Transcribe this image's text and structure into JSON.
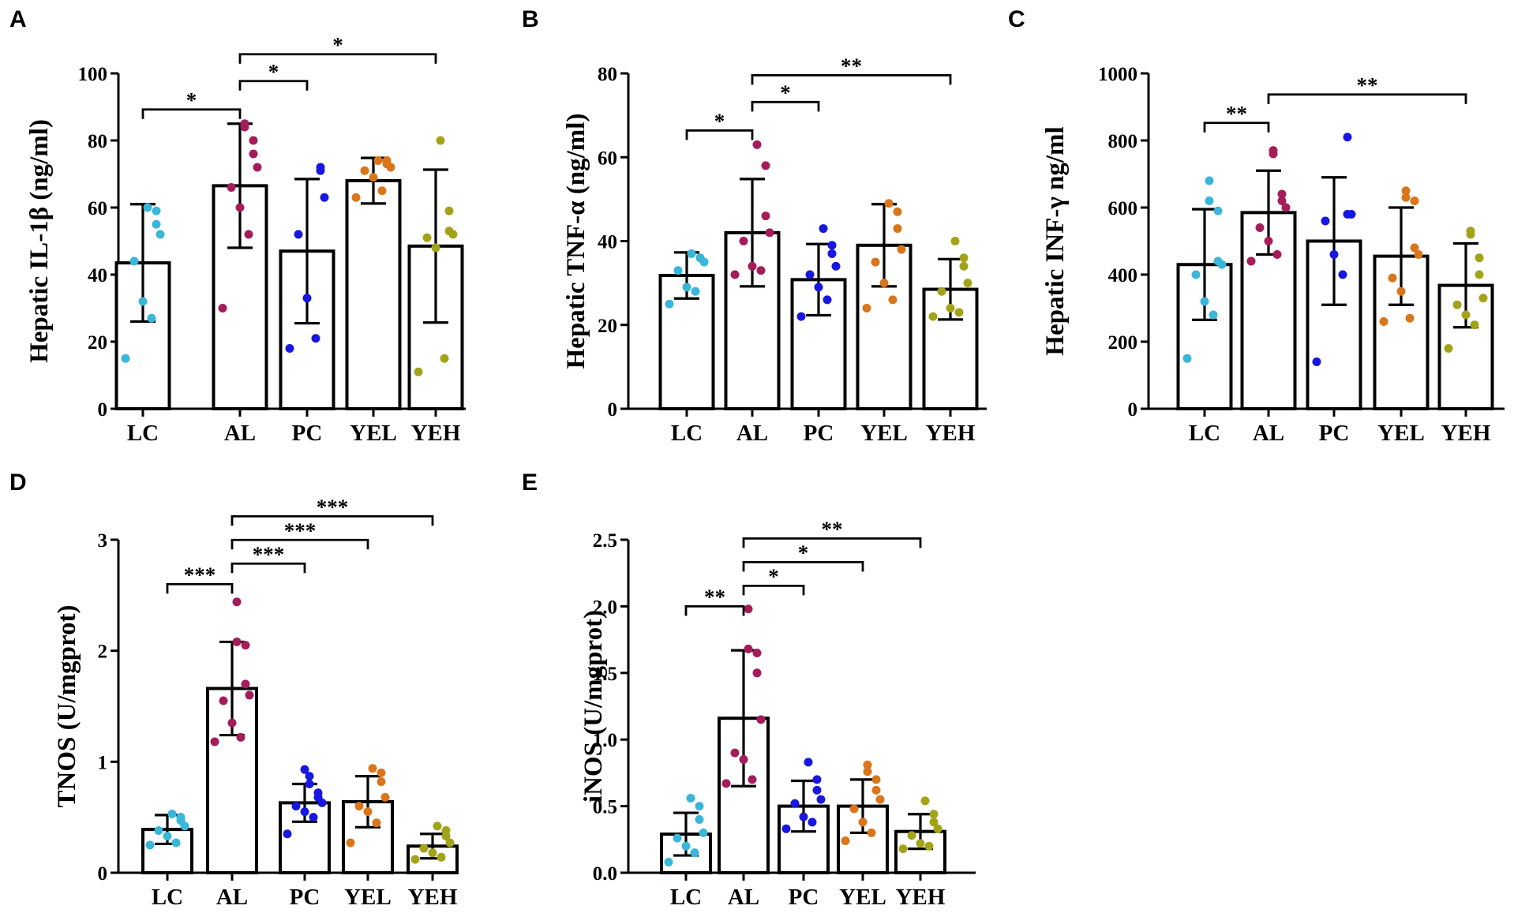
{
  "colors": {
    "LC": "#3ab6d8",
    "AL": "#a51c5a",
    "PC": "#1717e0",
    "YEL": "#d9761b",
    "YEH": "#a3a31a"
  },
  "chart_data": [
    {
      "type": "bar",
      "panel": "A",
      "ylabel": "Hepatic IL-1β (ng/ml)",
      "ylim": [
        0,
        100
      ],
      "ticks": [
        0,
        20,
        40,
        60,
        80,
        100
      ],
      "categories": [
        "LC",
        "AL",
        "PC",
        "YEL",
        "YEH"
      ],
      "means": [
        43.5,
        66.5,
        47,
        68,
        48.5
      ],
      "errors": [
        17.5,
        18.5,
        21.5,
        6.8,
        22.8
      ],
      "points": [
        [
          15,
          27,
          32,
          44,
          52,
          55,
          59,
          60
        ],
        [
          30,
          52,
          60,
          66,
          72,
          76,
          80,
          84,
          85
        ],
        [
          18,
          21,
          33,
          52,
          63,
          71,
          72
        ],
        [
          63,
          65,
          69,
          71,
          72,
          73,
          74,
          74
        ],
        [
          11,
          15,
          48,
          51,
          52,
          53,
          59,
          80
        ]
      ],
      "significance": [
        {
          "from": "LC",
          "to": "AL",
          "label": "*"
        },
        {
          "from": "AL",
          "to": "PC",
          "label": "*"
        },
        {
          "from": "AL",
          "to": "YEH",
          "label": "*"
        }
      ]
    },
    {
      "type": "bar",
      "panel": "B",
      "ylabel": "Hepatic TNF-α (ng/ml)",
      "ylim": [
        0,
        80
      ],
      "ticks": [
        0,
        20,
        40,
        60,
        80
      ],
      "categories": [
        "LC",
        "AL",
        "PC",
        "YEL",
        "YEH"
      ],
      "means": [
        31.8,
        42,
        30.8,
        39,
        28.5
      ],
      "errors": [
        5.5,
        12.8,
        8.5,
        9.8,
        7.2
      ],
      "points": [
        [
          25,
          28,
          29,
          33,
          35,
          36,
          36,
          37
        ],
        [
          32,
          33,
          34,
          40,
          42,
          46,
          58,
          63
        ],
        [
          22,
          26,
          29,
          32,
          34,
          37,
          39,
          43
        ],
        [
          24,
          26,
          30,
          35,
          38,
          43,
          47,
          49
        ],
        [
          22,
          23,
          24,
          28,
          30,
          34,
          36,
          40
        ]
      ],
      "significance": [
        {
          "from": "LC",
          "to": "AL",
          "label": "*"
        },
        {
          "from": "AL",
          "to": "PC",
          "label": "*"
        },
        {
          "from": "AL",
          "to": "YEH",
          "label": "**"
        }
      ]
    },
    {
      "type": "bar",
      "panel": "C",
      "ylabel": "Hepatic INF-γ ng/ml",
      "ylim": [
        0,
        1000
      ],
      "ticks": [
        0,
        200,
        400,
        600,
        800,
        1000
      ],
      "categories": [
        "LC",
        "AL",
        "PC",
        "YEL",
        "YEH"
      ],
      "means": [
        430,
        585,
        500,
        455,
        368
      ],
      "errors": [
        165,
        125,
        190,
        145,
        125
      ],
      "points": [
        [
          150,
          280,
          320,
          400,
          430,
          440,
          590,
          620,
          680
        ],
        [
          440,
          460,
          500,
          540,
          600,
          620,
          640,
          760,
          770
        ],
        [
          140,
          400,
          460,
          560,
          580,
          580,
          810
        ],
        [
          260,
          270,
          350,
          390,
          460,
          480,
          620,
          630,
          650
        ],
        [
          180,
          250,
          280,
          310,
          330,
          400,
          450,
          520,
          530
        ]
      ],
      "significance": [
        {
          "from": "LC",
          "to": "AL",
          "label": "**"
        },
        {
          "from": "AL",
          "to": "YEH",
          "label": "**"
        }
      ]
    },
    {
      "type": "bar",
      "panel": "D",
      "ylabel": "TNOS (U/mgprot)",
      "ylim": [
        0,
        3
      ],
      "ticks": [
        0,
        1,
        2,
        3
      ],
      "categories": [
        "LC",
        "AL",
        "PC",
        "YEL",
        "YEH"
      ],
      "means": [
        0.39,
        1.66,
        0.63,
        0.64,
        0.24
      ],
      "errors": [
        0.13,
        0.42,
        0.17,
        0.23,
        0.11
      ],
      "points": [
        [
          0.25,
          0.27,
          0.33,
          0.38,
          0.42,
          0.47,
          0.5,
          0.53
        ],
        [
          1.18,
          1.22,
          1.35,
          1.55,
          1.6,
          1.7,
          2.05,
          2.08,
          2.44
        ],
        [
          0.35,
          0.5,
          0.55,
          0.6,
          0.63,
          0.68,
          0.72,
          0.8,
          0.87,
          0.93
        ],
        [
          0.27,
          0.45,
          0.55,
          0.6,
          0.68,
          0.82,
          0.9,
          0.94
        ],
        [
          0.12,
          0.14,
          0.18,
          0.22,
          0.27,
          0.33,
          0.38,
          0.42
        ]
      ],
      "significance": [
        {
          "from": "LC",
          "to": "AL",
          "label": "***"
        },
        {
          "from": "AL",
          "to": "PC",
          "label": "***"
        },
        {
          "from": "AL",
          "to": "YEL",
          "label": "***"
        },
        {
          "from": "AL",
          "to": "YEH",
          "label": "***"
        }
      ]
    },
    {
      "type": "bar",
      "panel": "E",
      "ylabel": "iNOS (U/mgprot)",
      "ylim": [
        0,
        2.5
      ],
      "ticks": [
        "0.0",
        "0.5",
        "1.0",
        "1.5",
        "2.0",
        "2.5"
      ],
      "categories": [
        "LC",
        "AL",
        "PC",
        "YEL",
        "YEH"
      ],
      "means": [
        0.29,
        1.16,
        0.5,
        0.5,
        0.31
      ],
      "errors": [
        0.16,
        0.51,
        0.19,
        0.2,
        0.13
      ],
      "points": [
        [
          0.08,
          0.15,
          0.2,
          0.26,
          0.3,
          0.4,
          0.5,
          0.56
        ],
        [
          0.67,
          0.7,
          0.85,
          0.9,
          1.15,
          1.5,
          1.65,
          1.68,
          1.98
        ],
        [
          0.33,
          0.38,
          0.42,
          0.52,
          0.55,
          0.62,
          0.7,
          0.83
        ],
        [
          0.24,
          0.3,
          0.38,
          0.48,
          0.55,
          0.62,
          0.7,
          0.76,
          0.81
        ],
        [
          0.18,
          0.2,
          0.22,
          0.28,
          0.33,
          0.38,
          0.44,
          0.54
        ]
      ],
      "significance": [
        {
          "from": "LC",
          "to": "AL",
          "label": "**"
        },
        {
          "from": "AL",
          "to": "PC",
          "label": "*"
        },
        {
          "from": "AL",
          "to": "YEL",
          "label": "*"
        },
        {
          "from": "AL",
          "to": "YEH",
          "label": "**"
        }
      ]
    }
  ]
}
